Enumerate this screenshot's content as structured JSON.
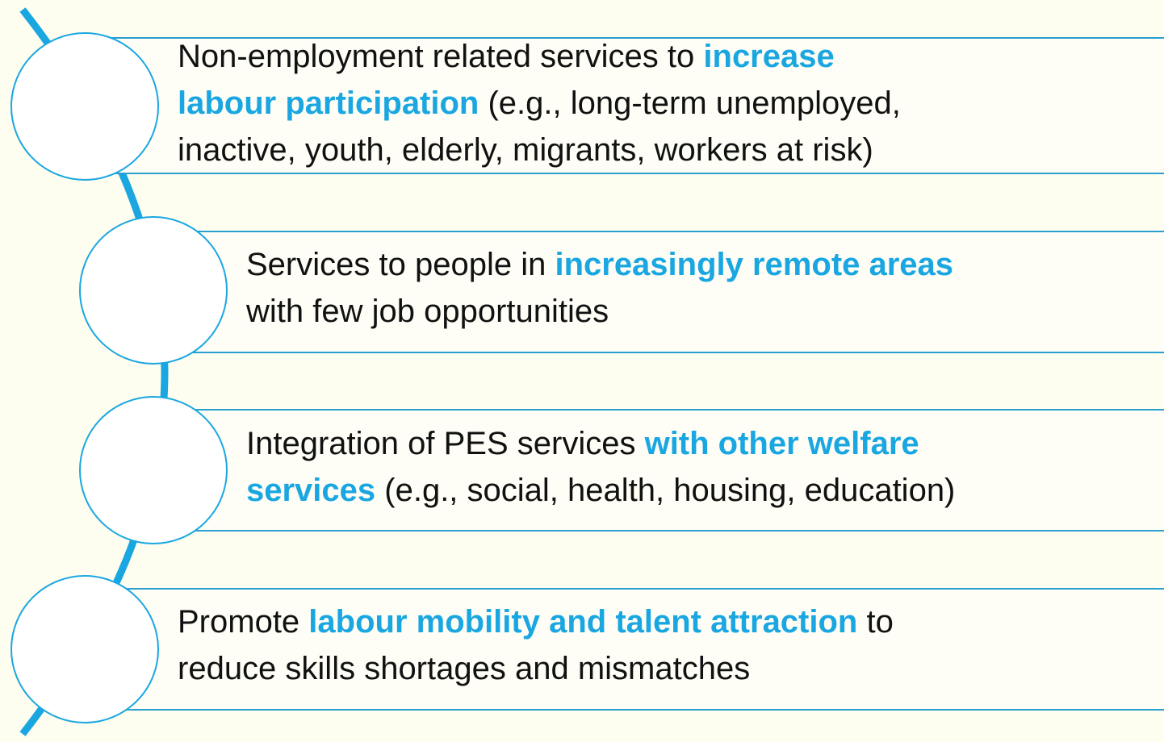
{
  "items": [
    {
      "lines": [
        [
          {
            "text": "Non-employment related services to ",
            "highlight": false
          },
          {
            "text": "increase",
            "highlight": true
          }
        ],
        [
          {
            "text": "labour participation",
            "highlight": true
          },
          {
            "text": " (e.g., long-term unemployed,",
            "highlight": false
          }
        ],
        [
          {
            "text": "inactive, youth, elderly, migrants, workers at risk)",
            "highlight": false
          }
        ]
      ]
    },
    {
      "lines": [
        [
          {
            "text": "Services to people in ",
            "highlight": false
          },
          {
            "text": "increasingly remote areas",
            "highlight": true
          }
        ],
        [
          {
            "text": "with few job opportunities",
            "highlight": false
          }
        ]
      ]
    },
    {
      "lines": [
        [
          {
            "text": "Integration of PES services ",
            "highlight": false
          },
          {
            "text": "with other welfare",
            "highlight": true
          }
        ],
        [
          {
            "text": "services",
            "highlight": true
          },
          {
            "text": " (e.g., social, health, housing, education)",
            "highlight": false
          }
        ]
      ]
    },
    {
      "lines": [
        [
          {
            "text": "Promote ",
            "highlight": false
          },
          {
            "text": "labour mobility and talent attraction",
            "highlight": true
          },
          {
            "text": " to",
            "highlight": false
          }
        ],
        [
          {
            "text": "reduce skills shortages and mismatches",
            "highlight": false
          }
        ]
      ]
    }
  ]
}
